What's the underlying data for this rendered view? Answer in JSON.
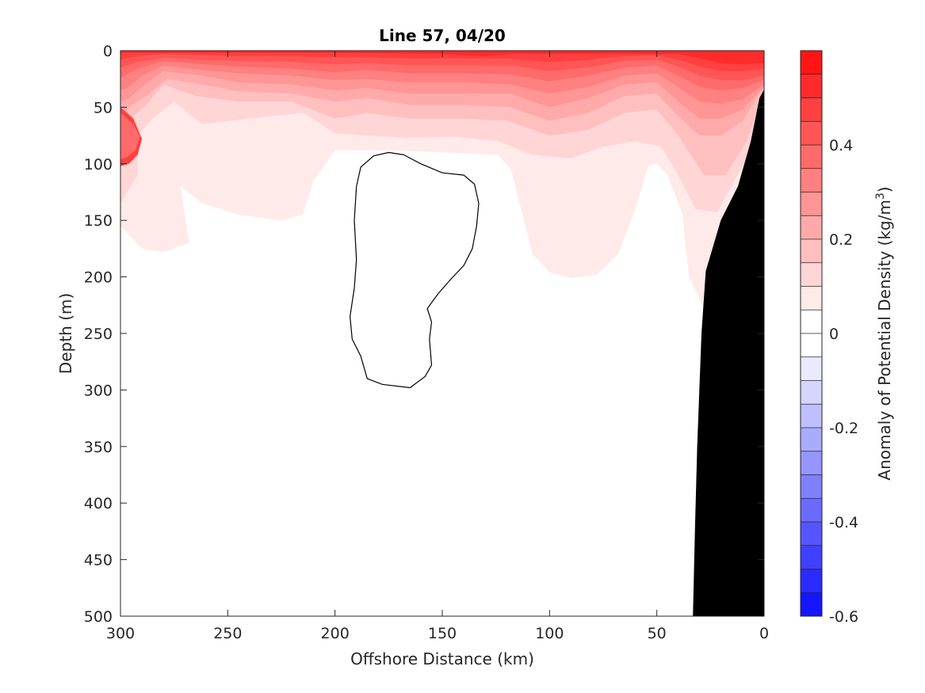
{
  "chart_data": {
    "type": "contour",
    "title": "Line 57, 04/20",
    "xlabel": "Offshore Distance (km)",
    "ylabel": "Depth (m)",
    "xlim": [
      300,
      0
    ],
    "ylim": [
      0,
      500
    ],
    "x_reversed": true,
    "y_reversed": true,
    "x_ticks": [
      300,
      250,
      200,
      150,
      100,
      50,
      0
    ],
    "y_ticks": [
      0,
      50,
      100,
      150,
      200,
      250,
      300,
      350,
      400,
      450,
      500
    ],
    "colorbar": {
      "label_prefix": "Anomaly of Potential Density (kg/m",
      "label_exponent": "3",
      "label_suffix": ")",
      "range": [
        -0.6,
        0.6
      ],
      "ticks": [
        "0.4",
        "0.2",
        "0",
        "-0.2",
        "-0.4",
        "-0.6"
      ],
      "tick_values": [
        0.4,
        0.2,
        0,
        -0.2,
        -0.4,
        -0.6
      ],
      "levels": [
        -0.6,
        -0.55,
        -0.5,
        -0.45,
        -0.4,
        -0.35,
        -0.3,
        -0.25,
        -0.2,
        -0.15,
        -0.1,
        -0.05,
        0,
        0.05,
        0.1,
        0.15,
        0.2,
        0.25,
        0.3,
        0.35,
        0.4,
        0.45,
        0.5,
        0.55,
        0.6
      ],
      "negative_color": "#0000ff",
      "positive_color": "#ff0000",
      "zero_color": "#ffffff"
    },
    "contour_bands": [
      {
        "level": 0.05,
        "points": [
          [
            300,
            0
          ],
          [
            0,
            0
          ],
          [
            0,
            40
          ],
          [
            12,
            140
          ],
          [
            22,
            205
          ],
          [
            27,
            232
          ],
          [
            35,
            200
          ],
          [
            38,
            145
          ],
          [
            45,
            110
          ],
          [
            50,
            100
          ],
          [
            54,
            102
          ],
          [
            60,
            140
          ],
          [
            68,
            180
          ],
          [
            78,
            198
          ],
          [
            90,
            201
          ],
          [
            100,
            196
          ],
          [
            108,
            180
          ],
          [
            112,
            150
          ],
          [
            118,
            105
          ],
          [
            124,
            92
          ],
          [
            150,
            90
          ],
          [
            175,
            88
          ],
          [
            200,
            88
          ],
          [
            210,
            115
          ],
          [
            215,
            145
          ],
          [
            225,
            150
          ],
          [
            245,
            145
          ],
          [
            262,
            135
          ],
          [
            272,
            120
          ],
          [
            268,
            170
          ],
          [
            280,
            178
          ],
          [
            290,
            175
          ],
          [
            300,
            155
          ]
        ]
      },
      {
        "level": 0.1,
        "points": [
          [
            300,
            0
          ],
          [
            0,
            0
          ],
          [
            0,
            35
          ],
          [
            8,
            95
          ],
          [
            22,
            143
          ],
          [
            32,
            140
          ],
          [
            40,
            110
          ],
          [
            48,
            85
          ],
          [
            60,
            80
          ],
          [
            75,
            85
          ],
          [
            90,
            95
          ],
          [
            108,
            92
          ],
          [
            124,
            80
          ],
          [
            145,
            76
          ],
          [
            165,
            77
          ],
          [
            185,
            75
          ],
          [
            200,
            73
          ],
          [
            215,
            55
          ],
          [
            240,
            60
          ],
          [
            262,
            65
          ],
          [
            275,
            45
          ],
          [
            285,
            60
          ],
          [
            292,
            75
          ],
          [
            292,
            110
          ],
          [
            300,
            135
          ]
        ]
      },
      {
        "level": 0.15,
        "points": [
          [
            300,
            0
          ],
          [
            0,
            0
          ],
          [
            0,
            33
          ],
          [
            8,
            80
          ],
          [
            18,
            110
          ],
          [
            28,
            110
          ],
          [
            40,
            75
          ],
          [
            50,
            52
          ],
          [
            65,
            55
          ],
          [
            82,
            70
          ],
          [
            100,
            75
          ],
          [
            120,
            62
          ],
          [
            140,
            60
          ],
          [
            165,
            60
          ],
          [
            185,
            55
          ],
          [
            200,
            60
          ],
          [
            220,
            45
          ],
          [
            245,
            45
          ],
          [
            265,
            40
          ],
          [
            280,
            30
          ],
          [
            288,
            48
          ],
          [
            294,
            58
          ],
          [
            297,
            80
          ],
          [
            300,
            105
          ]
        ]
      },
      {
        "level": 0.2,
        "points": [
          [
            300,
            0
          ],
          [
            0,
            0
          ],
          [
            0,
            32
          ],
          [
            10,
            62
          ],
          [
            20,
            75
          ],
          [
            30,
            75
          ],
          [
            40,
            58
          ],
          [
            50,
            38
          ],
          [
            65,
            40
          ],
          [
            82,
            55
          ],
          [
            100,
            62
          ],
          [
            118,
            50
          ],
          [
            140,
            48
          ],
          [
            165,
            48
          ],
          [
            185,
            42
          ],
          [
            200,
            45
          ],
          [
            220,
            38
          ],
          [
            245,
            36
          ],
          [
            262,
            30
          ],
          [
            278,
            25
          ],
          [
            288,
            40
          ],
          [
            296,
            50
          ],
          [
            300,
            62
          ]
        ]
      },
      {
        "level": 0.25,
        "points": [
          [
            300,
            0
          ],
          [
            0,
            0
          ],
          [
            0,
            32
          ],
          [
            10,
            52
          ],
          [
            20,
            60
          ],
          [
            30,
            60
          ],
          [
            40,
            45
          ],
          [
            50,
            28
          ],
          [
            65,
            30
          ],
          [
            82,
            42
          ],
          [
            100,
            50
          ],
          [
            118,
            38
          ],
          [
            140,
            38
          ],
          [
            165,
            38
          ],
          [
            185,
            33
          ],
          [
            200,
            35
          ],
          [
            220,
            30
          ],
          [
            245,
            28
          ],
          [
            262,
            22
          ],
          [
            280,
            18
          ],
          [
            290,
            32
          ],
          [
            296,
            42
          ],
          [
            300,
            45
          ]
        ]
      },
      {
        "level": 0.3,
        "points": [
          [
            300,
            0
          ],
          [
            0,
            0
          ],
          [
            0,
            30
          ],
          [
            10,
            43
          ],
          [
            20,
            47
          ],
          [
            30,
            45
          ],
          [
            40,
            32
          ],
          [
            50,
            20
          ],
          [
            65,
            22
          ],
          [
            82,
            32
          ],
          [
            100,
            38
          ],
          [
            118,
            30
          ],
          [
            140,
            28
          ],
          [
            165,
            28
          ],
          [
            185,
            25
          ],
          [
            200,
            26
          ],
          [
            220,
            22
          ],
          [
            245,
            20
          ],
          [
            262,
            17
          ],
          [
            280,
            13
          ],
          [
            290,
            22
          ],
          [
            297,
            33
          ],
          [
            300,
            35
          ]
        ]
      },
      {
        "level": 0.35,
        "points": [
          [
            300,
            0
          ],
          [
            0,
            0
          ],
          [
            0,
            26
          ],
          [
            10,
            33
          ],
          [
            20,
            35
          ],
          [
            30,
            32
          ],
          [
            40,
            22
          ],
          [
            50,
            13
          ],
          [
            65,
            15
          ],
          [
            82,
            22
          ],
          [
            100,
            27
          ],
          [
            118,
            21
          ],
          [
            140,
            20
          ],
          [
            165,
            20
          ],
          [
            185,
            17
          ],
          [
            200,
            19
          ],
          [
            220,
            16
          ],
          [
            245,
            14
          ],
          [
            262,
            12
          ],
          [
            280,
            9
          ],
          [
            292,
            16
          ],
          [
            300,
            24
          ]
        ]
      },
      {
        "level": 0.4,
        "points": [
          [
            300,
            0
          ],
          [
            0,
            0
          ],
          [
            0,
            22
          ],
          [
            10,
            26
          ],
          [
            20,
            26
          ],
          [
            30,
            22
          ],
          [
            40,
            14
          ],
          [
            50,
            8
          ],
          [
            65,
            9
          ],
          [
            82,
            15
          ],
          [
            100,
            18
          ],
          [
            118,
            13
          ],
          [
            140,
            13
          ],
          [
            165,
            13
          ],
          [
            185,
            11
          ],
          [
            200,
            12
          ],
          [
            220,
            10
          ],
          [
            245,
            9
          ],
          [
            262,
            8
          ],
          [
            280,
            6
          ],
          [
            292,
            10
          ],
          [
            300,
            15
          ]
        ]
      },
      {
        "level": 0.45,
        "points": [
          [
            300,
            0
          ],
          [
            0,
            0
          ],
          [
            0,
            16
          ],
          [
            10,
            18
          ],
          [
            20,
            18
          ],
          [
            30,
            14
          ],
          [
            40,
            8
          ],
          [
            50,
            4
          ],
          [
            65,
            5
          ],
          [
            82,
            8
          ],
          [
            100,
            10
          ],
          [
            118,
            7
          ],
          [
            140,
            7
          ],
          [
            165,
            7
          ],
          [
            185,
            6
          ],
          [
            200,
            6
          ],
          [
            220,
            5
          ],
          [
            245,
            5
          ],
          [
            262,
            4
          ],
          [
            280,
            3
          ],
          [
            292,
            5
          ],
          [
            300,
            8
          ]
        ]
      },
      {
        "level": 0.5,
        "points": [
          [
            300,
            0
          ],
          [
            0,
            0
          ],
          [
            0,
            11
          ],
          [
            10,
            12
          ],
          [
            20,
            11
          ],
          [
            30,
            7
          ],
          [
            40,
            3
          ],
          [
            118,
            3
          ],
          [
            130,
            5
          ],
          [
            150,
            3
          ],
          [
            200,
            2
          ],
          [
            300,
            2
          ]
        ]
      },
      {
        "level": 0.45,
        "points": [
          [
            300,
            50
          ],
          [
            294,
            60
          ],
          [
            290,
            78
          ],
          [
            292,
            92
          ],
          [
            296,
            100
          ],
          [
            300,
            102
          ]
        ]
      },
      {
        "level": 0.35,
        "points": [
          [
            300,
            55
          ],
          [
            294,
            65
          ],
          [
            291,
            76
          ],
          [
            293,
            88
          ],
          [
            297,
            94
          ],
          [
            300,
            96
          ]
        ]
      }
    ],
    "zero_contour": [
      [
        175,
        90
      ],
      [
        168,
        92
      ],
      [
        160,
        100
      ],
      [
        150,
        108
      ],
      [
        140,
        110
      ],
      [
        135,
        118
      ],
      [
        133,
        135
      ],
      [
        134,
        155
      ],
      [
        136,
        175
      ],
      [
        140,
        190
      ],
      [
        146,
        202
      ],
      [
        152,
        215
      ],
      [
        157,
        228
      ],
      [
        155,
        240
      ],
      [
        156,
        255
      ],
      [
        155,
        278
      ],
      [
        158,
        288
      ],
      [
        165,
        298
      ],
      [
        178,
        295
      ],
      [
        185,
        290
      ],
      [
        188,
        270
      ],
      [
        192,
        255
      ],
      [
        193,
        235
      ],
      [
        191,
        210
      ],
      [
        190,
        185
      ],
      [
        191,
        150
      ],
      [
        190,
        120
      ],
      [
        188,
        103
      ],
      [
        182,
        93
      ]
    ],
    "bathymetry": [
      [
        0,
        35
      ],
      [
        2,
        42
      ],
      [
        6,
        80
      ],
      [
        12,
        120
      ],
      [
        20,
        150
      ],
      [
        27,
        195
      ],
      [
        29,
        250
      ],
      [
        30,
        300
      ],
      [
        31,
        350
      ],
      [
        32,
        420
      ],
      [
        33,
        500
      ],
      [
        0,
        500
      ]
    ]
  }
}
